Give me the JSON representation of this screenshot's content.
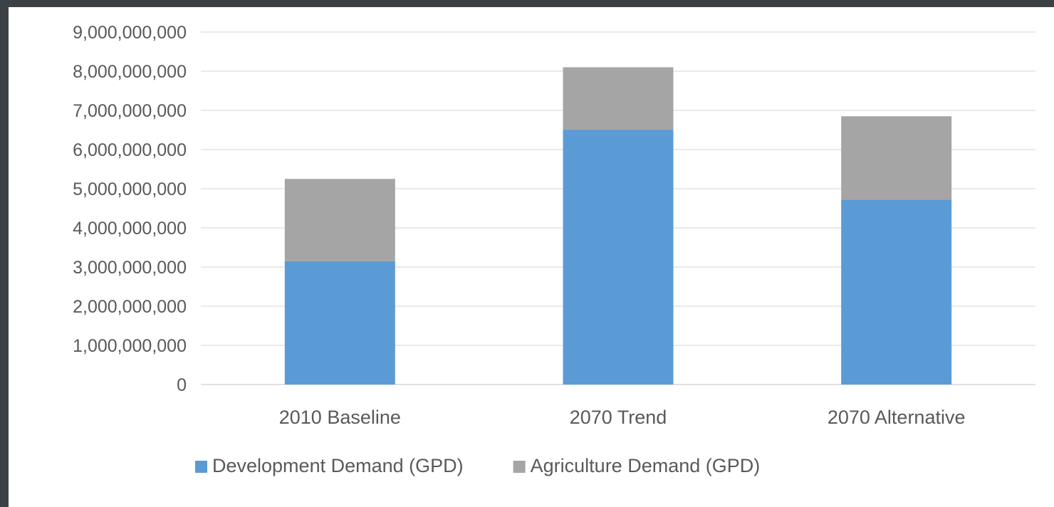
{
  "chart_data": {
    "type": "bar",
    "stacked": true,
    "categories": [
      "2010 Baseline",
      "2070 Trend",
      "2070 Alternative"
    ],
    "series": [
      {
        "name": "Development Demand (GPD)",
        "color": "#5b9bd5",
        "values": [
          3150000000,
          6500000000,
          4720000000
        ]
      },
      {
        "name": "Agriculture Demand (GPD)",
        "color": "#a5a5a5",
        "values": [
          2100000000,
          1600000000,
          2130000000
        ]
      }
    ],
    "ylim": [
      0,
      9000000000
    ],
    "yticks": [
      {
        "value": 0,
        "label": "0"
      },
      {
        "value": 1000000000,
        "label": "1,000,000,000"
      },
      {
        "value": 2000000000,
        "label": "2,000,000,000"
      },
      {
        "value": 3000000000,
        "label": "3,000,000,000"
      },
      {
        "value": 4000000000,
        "label": "4,000,000,000"
      },
      {
        "value": 5000000000,
        "label": "5,000,000,000"
      },
      {
        "value": 6000000000,
        "label": "6,000,000,000"
      },
      {
        "value": 7000000000,
        "label": "7,000,000,000"
      },
      {
        "value": 8000000000,
        "label": "8,000,000,000"
      },
      {
        "value": 9000000000,
        "label": "9,000,000,000"
      }
    ],
    "grid": true,
    "legend": "bottom",
    "title": "",
    "xlabel": "",
    "ylabel": ""
  }
}
